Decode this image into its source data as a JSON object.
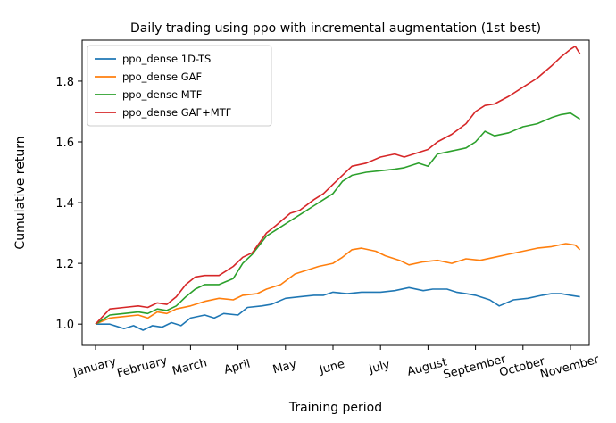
{
  "chart_data": {
    "type": "line",
    "title": "Daily trading using ppo with incremental augmentation (1st best)",
    "xlabel": "Training period",
    "ylabel": "Cumulative return",
    "x": [
      "January",
      "February",
      "March",
      "April",
      "May",
      "June",
      "July",
      "August",
      "September",
      "October",
      "November"
    ],
    "xlim": [
      0,
      10.4
    ],
    "ylim": [
      0.93,
      1.935
    ],
    "yticks": [
      1.0,
      1.2,
      1.4,
      1.6,
      1.8
    ],
    "ytick_labels": [
      "1.0",
      "1.2",
      "1.4",
      "1.6",
      "1.8"
    ],
    "legend_position": "upper-left",
    "grid": false,
    "series": [
      {
        "name": "ppo_dense 1D-TS",
        "color": "#1f77b4",
        "points": [
          [
            0,
            1.0
          ],
          [
            0.3,
            1.0
          ],
          [
            0.6,
            0.985
          ],
          [
            0.8,
            0.995
          ],
          [
            1.0,
            0.98
          ],
          [
            1.2,
            0.995
          ],
          [
            1.4,
            0.99
          ],
          [
            1.6,
            1.005
          ],
          [
            1.8,
            0.995
          ],
          [
            2.0,
            1.02
          ],
          [
            2.3,
            1.03
          ],
          [
            2.5,
            1.02
          ],
          [
            2.7,
            1.035
          ],
          [
            3.0,
            1.03
          ],
          [
            3.2,
            1.055
          ],
          [
            3.5,
            1.06
          ],
          [
            3.7,
            1.065
          ],
          [
            4.0,
            1.085
          ],
          [
            4.3,
            1.09
          ],
          [
            4.6,
            1.095
          ],
          [
            4.8,
            1.095
          ],
          [
            5.0,
            1.105
          ],
          [
            5.3,
            1.1
          ],
          [
            5.6,
            1.105
          ],
          [
            6.0,
            1.105
          ],
          [
            6.3,
            1.11
          ],
          [
            6.6,
            1.12
          ],
          [
            6.9,
            1.11
          ],
          [
            7.1,
            1.115
          ],
          [
            7.4,
            1.115
          ],
          [
            7.6,
            1.105
          ],
          [
            7.8,
            1.1
          ],
          [
            8.0,
            1.095
          ],
          [
            8.3,
            1.08
          ],
          [
            8.5,
            1.06
          ],
          [
            8.8,
            1.08
          ],
          [
            9.1,
            1.085
          ],
          [
            9.4,
            1.095
          ],
          [
            9.6,
            1.1
          ],
          [
            9.8,
            1.1
          ],
          [
            10.0,
            1.095
          ],
          [
            10.2,
            1.09
          ]
        ]
      },
      {
        "name": "ppo_dense GAF",
        "color": "#ff7f0e",
        "points": [
          [
            0,
            1.0
          ],
          [
            0.3,
            1.02
          ],
          [
            0.6,
            1.025
          ],
          [
            0.9,
            1.03
          ],
          [
            1.1,
            1.02
          ],
          [
            1.3,
            1.04
          ],
          [
            1.5,
            1.035
          ],
          [
            1.7,
            1.05
          ],
          [
            2.0,
            1.06
          ],
          [
            2.3,
            1.075
          ],
          [
            2.6,
            1.085
          ],
          [
            2.9,
            1.08
          ],
          [
            3.1,
            1.095
          ],
          [
            3.4,
            1.1
          ],
          [
            3.6,
            1.115
          ],
          [
            3.9,
            1.13
          ],
          [
            4.2,
            1.165
          ],
          [
            4.5,
            1.18
          ],
          [
            4.7,
            1.19
          ],
          [
            5.0,
            1.2
          ],
          [
            5.2,
            1.22
          ],
          [
            5.4,
            1.245
          ],
          [
            5.6,
            1.25
          ],
          [
            5.9,
            1.24
          ],
          [
            6.1,
            1.225
          ],
          [
            6.4,
            1.21
          ],
          [
            6.6,
            1.195
          ],
          [
            6.9,
            1.205
          ],
          [
            7.2,
            1.21
          ],
          [
            7.5,
            1.2
          ],
          [
            7.8,
            1.215
          ],
          [
            8.1,
            1.21
          ],
          [
            8.4,
            1.22
          ],
          [
            8.7,
            1.23
          ],
          [
            9.0,
            1.24
          ],
          [
            9.3,
            1.25
          ],
          [
            9.6,
            1.255
          ],
          [
            9.9,
            1.265
          ],
          [
            10.1,
            1.26
          ],
          [
            10.2,
            1.245
          ]
        ]
      },
      {
        "name": "ppo_dense MTF",
        "color": "#2ca02c",
        "points": [
          [
            0,
            1.0
          ],
          [
            0.3,
            1.03
          ],
          [
            0.6,
            1.035
          ],
          [
            0.9,
            1.04
          ],
          [
            1.1,
            1.035
          ],
          [
            1.3,
            1.05
          ],
          [
            1.5,
            1.045
          ],
          [
            1.7,
            1.06
          ],
          [
            1.9,
            1.09
          ],
          [
            2.1,
            1.115
          ],
          [
            2.3,
            1.13
          ],
          [
            2.6,
            1.13
          ],
          [
            2.9,
            1.15
          ],
          [
            3.1,
            1.2
          ],
          [
            3.3,
            1.23
          ],
          [
            3.6,
            1.29
          ],
          [
            3.8,
            1.31
          ],
          [
            4.1,
            1.34
          ],
          [
            4.3,
            1.36
          ],
          [
            4.6,
            1.39
          ],
          [
            4.8,
            1.41
          ],
          [
            5.0,
            1.43
          ],
          [
            5.2,
            1.47
          ],
          [
            5.4,
            1.49
          ],
          [
            5.7,
            1.5
          ],
          [
            6.0,
            1.505
          ],
          [
            6.3,
            1.51
          ],
          [
            6.5,
            1.515
          ],
          [
            6.8,
            1.53
          ],
          [
            7.0,
            1.52
          ],
          [
            7.2,
            1.56
          ],
          [
            7.5,
            1.57
          ],
          [
            7.8,
            1.58
          ],
          [
            8.0,
            1.6
          ],
          [
            8.2,
            1.635
          ],
          [
            8.4,
            1.62
          ],
          [
            8.7,
            1.63
          ],
          [
            9.0,
            1.65
          ],
          [
            9.3,
            1.66
          ],
          [
            9.6,
            1.68
          ],
          [
            9.8,
            1.69
          ],
          [
            10.0,
            1.695
          ],
          [
            10.2,
            1.675
          ]
        ]
      },
      {
        "name": "ppo_dense GAF+MTF",
        "color": "#d62728",
        "points": [
          [
            0,
            1.0
          ],
          [
            0.3,
            1.05
          ],
          [
            0.6,
            1.055
          ],
          [
            0.9,
            1.06
          ],
          [
            1.1,
            1.055
          ],
          [
            1.3,
            1.07
          ],
          [
            1.5,
            1.065
          ],
          [
            1.7,
            1.09
          ],
          [
            1.9,
            1.13
          ],
          [
            2.1,
            1.155
          ],
          [
            2.3,
            1.16
          ],
          [
            2.6,
            1.16
          ],
          [
            2.9,
            1.19
          ],
          [
            3.1,
            1.22
          ],
          [
            3.3,
            1.235
          ],
          [
            3.6,
            1.3
          ],
          [
            3.8,
            1.325
          ],
          [
            4.1,
            1.365
          ],
          [
            4.3,
            1.375
          ],
          [
            4.6,
            1.41
          ],
          [
            4.8,
            1.43
          ],
          [
            5.0,
            1.46
          ],
          [
            5.2,
            1.49
          ],
          [
            5.4,
            1.52
          ],
          [
            5.7,
            1.53
          ],
          [
            6.0,
            1.55
          ],
          [
            6.3,
            1.56
          ],
          [
            6.5,
            1.55
          ],
          [
            6.8,
            1.565
          ],
          [
            7.0,
            1.575
          ],
          [
            7.2,
            1.6
          ],
          [
            7.5,
            1.625
          ],
          [
            7.8,
            1.66
          ],
          [
            8.0,
            1.7
          ],
          [
            8.2,
            1.72
          ],
          [
            8.4,
            1.725
          ],
          [
            8.7,
            1.75
          ],
          [
            9.0,
            1.78
          ],
          [
            9.3,
            1.81
          ],
          [
            9.6,
            1.85
          ],
          [
            9.8,
            1.88
          ],
          [
            10.0,
            1.905
          ],
          [
            10.1,
            1.915
          ],
          [
            10.2,
            1.89
          ]
        ]
      }
    ]
  }
}
